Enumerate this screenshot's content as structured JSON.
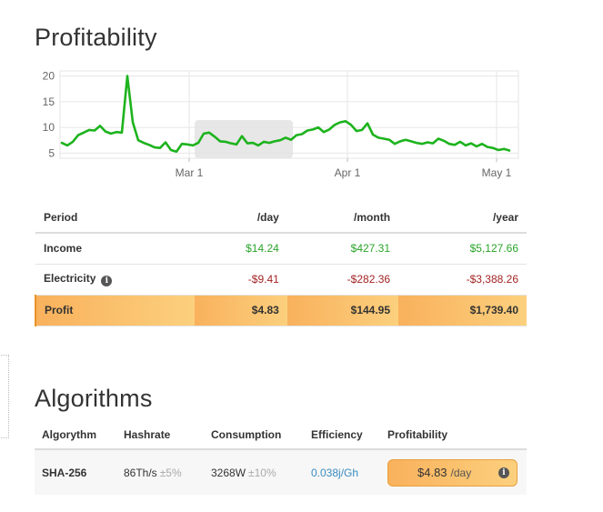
{
  "profitability": {
    "title": "Profitability",
    "chart_data": {
      "type": "line",
      "x_tick_labels": [
        "Mar 1",
        "Apr 1",
        "May 1"
      ],
      "y_ticks": [
        5,
        10,
        15,
        20
      ],
      "ylim": [
        4,
        21
      ],
      "series": [
        {
          "color": "#1db31d",
          "values": [
            7.0,
            6.5,
            7.2,
            8.5,
            9.0,
            9.5,
            9.4,
            10.3,
            9.2,
            8.8,
            9.1,
            9.0,
            20.0,
            11.0,
            7.5,
            7.0,
            6.6,
            6.1,
            6.0,
            7.1,
            5.6,
            5.3,
            6.8,
            6.7,
            6.5,
            7.0,
            8.8,
            9.0,
            8.2,
            7.3,
            7.2,
            6.9,
            6.7,
            8.3,
            6.9,
            7.0,
            6.5,
            7.2,
            7.0,
            7.3,
            7.5,
            8.0,
            7.6,
            8.5,
            8.7,
            9.4,
            9.6,
            10.0,
            9.1,
            9.6,
            10.5,
            11.0,
            11.2,
            10.5,
            9.3,
            9.5,
            10.8,
            8.6,
            8.0,
            7.8,
            7.6,
            6.8,
            7.3,
            7.6,
            7.3,
            7.0,
            6.8,
            7.1,
            6.9,
            7.8,
            7.4,
            6.8,
            6.6,
            7.2,
            6.5,
            6.9,
            6.3,
            6.8,
            6.2,
            6.0,
            5.6,
            5.8,
            5.5
          ]
        }
      ],
      "grid": true,
      "highlight_band": "around Mar 1 to mid-March"
    }
  },
  "table": {
    "headers": [
      "Period",
      "/day",
      "/month",
      "/year"
    ],
    "rows": [
      {
        "label": "Income",
        "day": "$14.24",
        "month": "$427.31",
        "year": "$5,127.66"
      },
      {
        "label": "Electricity",
        "day": "-$9.41",
        "month": "-$282.36",
        "year": "-$3,388.26"
      },
      {
        "label": "Profit",
        "day": "$4.83",
        "month": "$144.95",
        "year": "$1,739.40"
      }
    ],
    "info_icon": "i"
  },
  "algorithms": {
    "title": "Algorithms",
    "headers": [
      "Algorythm",
      "Hashrate",
      "Consumption",
      "Efficiency",
      "Profitability"
    ],
    "rows": [
      {
        "algorithm": "SHA-256",
        "hashrate": "86Th/s",
        "hashrate_tol": "±5%",
        "consumption": "3268W",
        "consumption_tol": "±10%",
        "efficiency": "0.038j/Gh",
        "profitability": "$4.83",
        "profitability_unit": "/day"
      }
    ]
  },
  "colors": {
    "income": "#2aa52a",
    "expense": "#a32424",
    "accent": "#f9b15c",
    "line": "#1db31d"
  }
}
